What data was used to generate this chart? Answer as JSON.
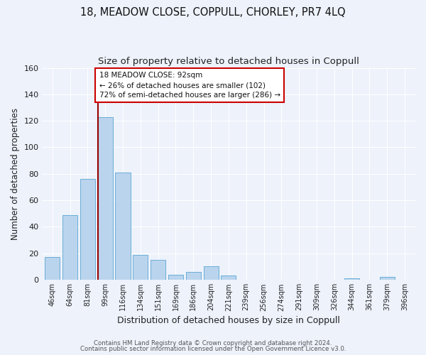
{
  "title": "18, MEADOW CLOSE, COPPULL, CHORLEY, PR7 4LQ",
  "subtitle": "Size of property relative to detached houses in Coppull",
  "xlabel": "Distribution of detached houses by size in Coppull",
  "ylabel": "Number of detached properties",
  "bar_labels": [
    "46sqm",
    "64sqm",
    "81sqm",
    "99sqm",
    "116sqm",
    "134sqm",
    "151sqm",
    "169sqm",
    "186sqm",
    "204sqm",
    "221sqm",
    "239sqm",
    "256sqm",
    "274sqm",
    "291sqm",
    "309sqm",
    "326sqm",
    "344sqm",
    "361sqm",
    "379sqm",
    "396sqm"
  ],
  "bar_values": [
    17,
    49,
    76,
    123,
    81,
    19,
    15,
    4,
    6,
    10,
    3,
    0,
    0,
    0,
    0,
    0,
    0,
    1,
    0,
    2,
    0
  ],
  "bar_color": "#bad4ed",
  "bar_edge_color": "#6aaed6",
  "ylim": [
    0,
    160
  ],
  "yticks": [
    0,
    20,
    40,
    60,
    80,
    100,
    120,
    140,
    160
  ],
  "property_line_color": "#990000",
  "annotation_title": "18 MEADOW CLOSE: 92sqm",
  "annotation_line1": "← 26% of detached houses are smaller (102)",
  "annotation_line2": "72% of semi-detached houses are larger (286) →",
  "annotation_box_color": "#ffffff",
  "annotation_box_edge": "#cc0000",
  "footer1": "Contains HM Land Registry data © Crown copyright and database right 2024.",
  "footer2": "Contains public sector information licensed under the Open Government Licence v3.0.",
  "bg_color": "#edf2fb",
  "grid_color": "#ffffff",
  "title_fontsize": 10.5,
  "subtitle_fontsize": 9.5
}
